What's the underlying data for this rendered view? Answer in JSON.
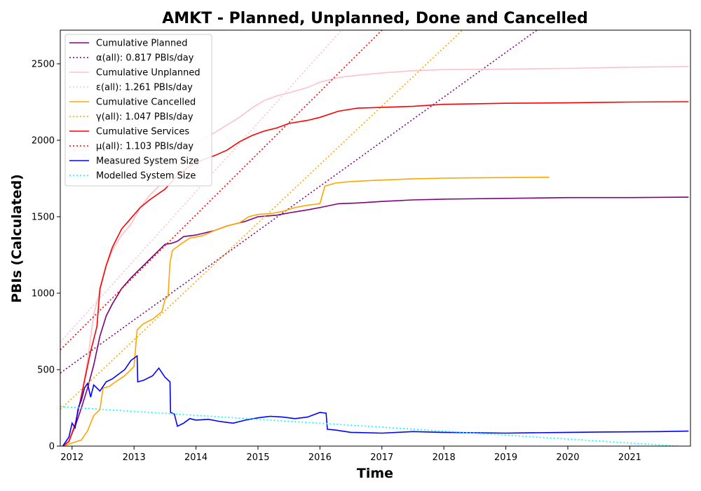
{
  "chart_data": {
    "type": "line",
    "title": "AMKT - Planned, Unplanned, Done  and Cancelled",
    "xlabel": "Time",
    "ylabel": "PBIs (Calculated)",
    "xlim": [
      2011.81,
      2021.98
    ],
    "ylim": [
      0,
      2720
    ],
    "xticks": [
      2012,
      2013,
      2014,
      2015,
      2016,
      2017,
      2018,
      2019,
      2020,
      2021
    ],
    "yticks": [
      0,
      500,
      1000,
      1500,
      2000,
      2500
    ],
    "legend_position": "top-left",
    "grid": false,
    "series": [
      {
        "name": "Cumulative Planned",
        "color": "#800080",
        "style": "solid",
        "points": [
          [
            2011.85,
            0
          ],
          [
            2011.95,
            40
          ],
          [
            2012.05,
            130
          ],
          [
            2012.15,
            250
          ],
          [
            2012.25,
            380
          ],
          [
            2012.35,
            530
          ],
          [
            2012.45,
            720
          ],
          [
            2012.55,
            850
          ],
          [
            2012.65,
            930
          ],
          [
            2012.8,
            1030
          ],
          [
            2012.95,
            1100
          ],
          [
            2013.1,
            1160
          ],
          [
            2013.25,
            1220
          ],
          [
            2013.4,
            1280
          ],
          [
            2013.5,
            1320
          ],
          [
            2013.6,
            1325
          ],
          [
            2013.7,
            1340
          ],
          [
            2013.8,
            1370
          ],
          [
            2014.0,
            1380
          ],
          [
            2014.3,
            1410
          ],
          [
            2014.5,
            1440
          ],
          [
            2014.8,
            1470
          ],
          [
            2015.0,
            1500
          ],
          [
            2015.3,
            1510
          ],
          [
            2015.5,
            1525
          ],
          [
            2015.8,
            1545
          ],
          [
            2016.0,
            1560
          ],
          [
            2016.3,
            1585
          ],
          [
            2016.6,
            1590
          ],
          [
            2017.0,
            1600
          ],
          [
            2017.5,
            1610
          ],
          [
            2018.0,
            1615
          ],
          [
            2019.0,
            1620
          ],
          [
            2020.0,
            1625
          ],
          [
            2021.0,
            1625
          ],
          [
            2021.95,
            1628
          ]
        ]
      },
      {
        "name": "α(all): 0.817 PBIs/day",
        "color": "#800080",
        "style": "dotted",
        "points": [
          [
            2011.81,
            478
          ],
          [
            2019.5,
            2720
          ]
        ]
      },
      {
        "name": "Cumulative Unplanned",
        "color": "#ffc0cb",
        "style": "solid",
        "points": [
          [
            2011.85,
            0
          ],
          [
            2011.95,
            40
          ],
          [
            2012.05,
            150
          ],
          [
            2012.15,
            320
          ],
          [
            2012.25,
            560
          ],
          [
            2012.35,
            860
          ],
          [
            2012.45,
            1020
          ],
          [
            2012.55,
            1180
          ],
          [
            2012.65,
            1280
          ],
          [
            2012.8,
            1380
          ],
          [
            2012.95,
            1450
          ],
          [
            2013.1,
            1560
          ],
          [
            2013.25,
            1640
          ],
          [
            2013.4,
            1700
          ],
          [
            2013.6,
            1800
          ],
          [
            2013.8,
            1850
          ],
          [
            2014.0,
            1980
          ],
          [
            2014.3,
            2050
          ],
          [
            2014.5,
            2100
          ],
          [
            2014.7,
            2150
          ],
          [
            2014.9,
            2210
          ],
          [
            2015.1,
            2260
          ],
          [
            2015.3,
            2290
          ],
          [
            2015.5,
            2310
          ],
          [
            2015.8,
            2345
          ],
          [
            2016.0,
            2380
          ],
          [
            2016.3,
            2410
          ],
          [
            2016.6,
            2425
          ],
          [
            2017.0,
            2440
          ],
          [
            2017.5,
            2455
          ],
          [
            2018.0,
            2462
          ],
          [
            2019.0,
            2465
          ],
          [
            2020.0,
            2470
          ],
          [
            2021.0,
            2478
          ],
          [
            2021.95,
            2482
          ]
        ]
      },
      {
        "name": "ε(all): 1.261 PBIs/day",
        "color": "#ffc0cb",
        "style": "dotted",
        "points": [
          [
            2011.81,
            680
          ],
          [
            2016.35,
            2720
          ]
        ]
      },
      {
        "name": "Cumulative Cancelled",
        "color": "#ffa500",
        "style": "solid",
        "points": [
          [
            2011.85,
            0
          ],
          [
            2012.0,
            20
          ],
          [
            2012.15,
            40
          ],
          [
            2012.25,
            100
          ],
          [
            2012.35,
            200
          ],
          [
            2012.45,
            240
          ],
          [
            2012.5,
            380
          ],
          [
            2012.6,
            390
          ],
          [
            2012.7,
            420
          ],
          [
            2012.85,
            460
          ],
          [
            2013.0,
            520
          ],
          [
            2013.05,
            760
          ],
          [
            2013.15,
            800
          ],
          [
            2013.3,
            830
          ],
          [
            2013.45,
            880
          ],
          [
            2013.5,
            960
          ],
          [
            2013.55,
            980
          ],
          [
            2013.58,
            1200
          ],
          [
            2013.62,
            1280
          ],
          [
            2013.75,
            1320
          ],
          [
            2013.9,
            1360
          ],
          [
            2014.1,
            1375
          ],
          [
            2014.3,
            1410
          ],
          [
            2014.5,
            1440
          ],
          [
            2014.7,
            1460
          ],
          [
            2014.85,
            1500
          ],
          [
            2015.0,
            1515
          ],
          [
            2015.2,
            1520
          ],
          [
            2015.4,
            1535
          ],
          [
            2015.6,
            1560
          ],
          [
            2015.8,
            1575
          ],
          [
            2016.0,
            1585
          ],
          [
            2016.08,
            1700
          ],
          [
            2016.25,
            1720
          ],
          [
            2016.5,
            1730
          ],
          [
            2017.0,
            1740
          ],
          [
            2017.5,
            1748
          ],
          [
            2018.0,
            1752
          ],
          [
            2018.6,
            1755
          ],
          [
            2019.7,
            1758
          ]
        ]
      },
      {
        "name": "γ(all): 1.047 PBIs/day",
        "color": "#ffa500",
        "style": "dotted",
        "points": [
          [
            2011.81,
            240
          ],
          [
            2018.3,
            2720
          ]
        ]
      },
      {
        "name": "Cumulative Services",
        "color": "#ff0000",
        "style": "solid",
        "points": [
          [
            2011.85,
            0
          ],
          [
            2011.95,
            30
          ],
          [
            2012.05,
            140
          ],
          [
            2012.15,
            330
          ],
          [
            2012.3,
            620
          ],
          [
            2012.4,
            780
          ],
          [
            2012.45,
            1030
          ],
          [
            2012.55,
            1180
          ],
          [
            2012.65,
            1300
          ],
          [
            2012.8,
            1420
          ],
          [
            2012.95,
            1490
          ],
          [
            2013.1,
            1560
          ],
          [
            2013.25,
            1610
          ],
          [
            2013.5,
            1680
          ],
          [
            2013.7,
            1770
          ],
          [
            2013.9,
            1830
          ],
          [
            2014.1,
            1870
          ],
          [
            2014.3,
            1900
          ],
          [
            2014.5,
            1935
          ],
          [
            2014.7,
            1990
          ],
          [
            2014.9,
            2030
          ],
          [
            2015.1,
            2060
          ],
          [
            2015.3,
            2080
          ],
          [
            2015.5,
            2110
          ],
          [
            2015.8,
            2130
          ],
          [
            2016.0,
            2150
          ],
          [
            2016.3,
            2190
          ],
          [
            2016.6,
            2210
          ],
          [
            2017.0,
            2215
          ],
          [
            2017.5,
            2222
          ],
          [
            2018.0,
            2235
          ],
          [
            2019.0,
            2242
          ],
          [
            2020.0,
            2245
          ],
          [
            2021.0,
            2250
          ],
          [
            2021.95,
            2252
          ]
        ]
      },
      {
        "name": "μ(all): 1.103 PBIs/day",
        "color": "#ff0000",
        "style": "dotted",
        "points": [
          [
            2011.81,
            630
          ],
          [
            2017.0,
            2720
          ]
        ]
      },
      {
        "name": "Measured System Size",
        "color": "#0000ff",
        "style": "solid",
        "points": [
          [
            2011.85,
            0
          ],
          [
            2011.95,
            60
          ],
          [
            2012.0,
            150
          ],
          [
            2012.05,
            120
          ],
          [
            2012.1,
            250
          ],
          [
            2012.15,
            300
          ],
          [
            2012.2,
            380
          ],
          [
            2012.25,
            410
          ],
          [
            2012.3,
            320
          ],
          [
            2012.35,
            400
          ],
          [
            2012.45,
            360
          ],
          [
            2012.55,
            420
          ],
          [
            2012.65,
            440
          ],
          [
            2012.75,
            470
          ],
          [
            2012.85,
            500
          ],
          [
            2012.95,
            560
          ],
          [
            2013.05,
            590
          ],
          [
            2013.06,
            420
          ],
          [
            2013.15,
            430
          ],
          [
            2013.3,
            460
          ],
          [
            2013.4,
            510
          ],
          [
            2013.5,
            450
          ],
          [
            2013.58,
            420
          ],
          [
            2013.59,
            220
          ],
          [
            2013.65,
            210
          ],
          [
            2013.7,
            130
          ],
          [
            2013.8,
            150
          ],
          [
            2013.9,
            180
          ],
          [
            2014.0,
            170
          ],
          [
            2014.2,
            175
          ],
          [
            2014.4,
            160
          ],
          [
            2014.6,
            150
          ],
          [
            2014.8,
            170
          ],
          [
            2015.0,
            185
          ],
          [
            2015.2,
            195
          ],
          [
            2015.4,
            190
          ],
          [
            2015.6,
            180
          ],
          [
            2015.8,
            190
          ],
          [
            2016.0,
            220
          ],
          [
            2016.1,
            215
          ],
          [
            2016.12,
            110
          ],
          [
            2016.25,
            105
          ],
          [
            2016.5,
            90
          ],
          [
            2017.0,
            85
          ],
          [
            2017.5,
            95
          ],
          [
            2018.0,
            90
          ],
          [
            2019.0,
            85
          ],
          [
            2020.0,
            90
          ],
          [
            2020.5,
            92
          ],
          [
            2021.5,
            95
          ],
          [
            2021.95,
            98
          ]
        ]
      },
      {
        "name": "Modelled System Size",
        "color": "#00ffff",
        "style": "dotted",
        "points": [
          [
            2011.81,
            258
          ],
          [
            2021.98,
            -5
          ]
        ]
      }
    ]
  }
}
